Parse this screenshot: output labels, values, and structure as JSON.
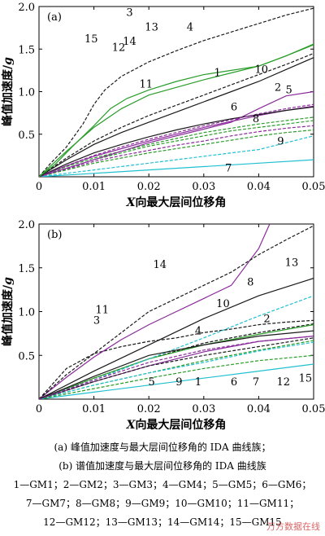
{
  "chart_data": [
    {
      "type": "line",
      "panel_label": "(a)",
      "xlabel_italic": "X",
      "xlabel_rest": "向最大层间位移角",
      "ylabel_main": "峰值加速度/",
      "ylabel_unit": "g",
      "xlim": [
        0,
        0.05
      ],
      "ylim": [
        0,
        2.0
      ],
      "xticks": [
        "0",
        "0.01",
        "0.02",
        "0.03",
        "0.04",
        "0.05"
      ],
      "yticks": [
        "0",
        "0.5",
        "1.0",
        "1.5",
        "2.0"
      ],
      "grid": false,
      "colors": {
        "black": "#1a1a1a",
        "green": "#2a9d2a",
        "purple": "#8a2a9a",
        "cyan": "#20c0d0"
      },
      "series": [
        {
          "name": "1",
          "color": "purple",
          "dash": false,
          "x": [
            0,
            0.005,
            0.01,
            0.015,
            0.02,
            0.025,
            0.03,
            0.035,
            0.04,
            0.045,
            0.05
          ],
          "y": [
            0,
            0.13,
            0.24,
            0.33,
            0.42,
            0.5,
            0.58,
            0.65,
            0.72,
            0.78,
            0.83
          ]
        },
        {
          "name": "2",
          "color": "green",
          "dash": true,
          "x": [
            0,
            0.005,
            0.01,
            0.015,
            0.02,
            0.025,
            0.03,
            0.035,
            0.04,
            0.045,
            0.05
          ],
          "y": [
            0,
            0.12,
            0.22,
            0.3,
            0.38,
            0.45,
            0.52,
            0.57,
            0.62,
            0.66,
            0.7
          ]
        },
        {
          "name": "3",
          "color": "black",
          "dash": true,
          "x": [
            0,
            0.002,
            0.005,
            0.008,
            0.01,
            0.012,
            0.015,
            0.02,
            0.025,
            0.03,
            0.035,
            0.04,
            0.045,
            0.05
          ],
          "y": [
            0,
            0.15,
            0.35,
            0.62,
            0.85,
            1.02,
            1.18,
            1.35,
            1.48,
            1.6,
            1.7,
            1.8,
            1.9,
            1.98
          ]
        },
        {
          "name": "4",
          "color": "green",
          "dash": false,
          "x": [
            0,
            0.005,
            0.01,
            0.015,
            0.02,
            0.025,
            0.03,
            0.035,
            0.04,
            0.045,
            0.05
          ],
          "y": [
            0,
            0.3,
            0.58,
            0.8,
            0.96,
            1.05,
            1.14,
            1.22,
            1.3,
            1.42,
            1.55
          ]
        },
        {
          "name": "5",
          "color": "green",
          "dash": true,
          "x": [
            0,
            0.005,
            0.01,
            0.015,
            0.02,
            0.025,
            0.03,
            0.035,
            0.04,
            0.045,
            0.05
          ],
          "y": [
            0,
            0.1,
            0.2,
            0.28,
            0.36,
            0.42,
            0.48,
            0.54,
            0.58,
            0.62,
            0.66
          ]
        },
        {
          "name": "6",
          "color": "purple",
          "dash": true,
          "x": [
            0,
            0.005,
            0.01,
            0.015,
            0.02,
            0.025,
            0.03,
            0.035,
            0.04,
            0.045,
            0.05
          ],
          "y": [
            0,
            0.09,
            0.18,
            0.25,
            0.31,
            0.37,
            0.42,
            0.48,
            0.53,
            0.57,
            0.6
          ]
        },
        {
          "name": "7",
          "color": "cyan",
          "dash": false,
          "x": [
            0,
            0.01,
            0.02,
            0.03,
            0.04,
            0.05
          ],
          "y": [
            0,
            0.04,
            0.08,
            0.12,
            0.16,
            0.2
          ]
        },
        {
          "name": "8",
          "color": "green",
          "dash": true,
          "x": [
            0,
            0.005,
            0.01,
            0.015,
            0.02,
            0.025,
            0.03,
            0.035,
            0.04,
            0.045,
            0.05
          ],
          "y": [
            0,
            0.08,
            0.16,
            0.22,
            0.28,
            0.33,
            0.38,
            0.43,
            0.48,
            0.52,
            0.55
          ]
        },
        {
          "name": "9",
          "color": "cyan",
          "dash": true,
          "x": [
            0,
            0.01,
            0.02,
            0.03,
            0.035,
            0.04,
            0.045,
            0.05
          ],
          "y": [
            0,
            0.08,
            0.16,
            0.24,
            0.28,
            0.32,
            0.4,
            0.48
          ]
        },
        {
          "name": "10",
          "color": "purple",
          "dash": false,
          "x": [
            0,
            0.005,
            0.01,
            0.015,
            0.02,
            0.025,
            0.03,
            0.035,
            0.04,
            0.045,
            0.05
          ],
          "y": [
            0,
            0.1,
            0.2,
            0.3,
            0.4,
            0.48,
            0.56,
            0.64,
            0.8,
            0.95,
            1.0
          ]
        },
        {
          "name": "11",
          "color": "black",
          "dash": false,
          "x": [
            0,
            0.005,
            0.01,
            0.015,
            0.02,
            0.025,
            0.03,
            0.035,
            0.04,
            0.045,
            0.05
          ],
          "y": [
            0,
            0.15,
            0.28,
            0.38,
            0.47,
            0.55,
            0.62,
            0.68,
            0.73,
            0.78,
            0.82
          ]
        },
        {
          "name": "12",
          "color": "purple",
          "dash": true,
          "x": [
            0,
            0.005,
            0.01,
            0.015,
            0.02,
            0.025,
            0.03,
            0.035,
            0.04,
            0.045,
            0.05
          ],
          "y": [
            0,
            0.13,
            0.25,
            0.35,
            0.44,
            0.52,
            0.6,
            0.67,
            0.74,
            0.8,
            0.85
          ]
        },
        {
          "name": "13",
          "color": "black",
          "dash": false,
          "x": [
            0,
            0.005,
            0.01,
            0.015,
            0.02,
            0.025,
            0.03,
            0.035,
            0.04,
            0.045,
            0.05
          ],
          "y": [
            0,
            0.2,
            0.38,
            0.52,
            0.64,
            0.76,
            0.88,
            1.0,
            1.12,
            1.26,
            1.4
          ]
        },
        {
          "name": "14",
          "color": "black",
          "dash": true,
          "x": [
            0,
            0.005,
            0.01,
            0.015,
            0.02,
            0.025,
            0.03,
            0.035,
            0.04,
            0.045,
            0.05
          ],
          "y": [
            0,
            0.22,
            0.42,
            0.58,
            0.72,
            0.84,
            0.96,
            1.08,
            1.2,
            1.32,
            1.45
          ]
        },
        {
          "name": "15",
          "color": "green",
          "dash": false,
          "x": [
            0,
            0.003,
            0.006,
            0.01,
            0.013,
            0.016,
            0.02,
            0.025,
            0.03,
            0.035,
            0.04,
            0.045,
            0.05
          ],
          "y": [
            0,
            0.15,
            0.35,
            0.6,
            0.8,
            0.92,
            1.02,
            1.12,
            1.2,
            1.25,
            1.3,
            1.42,
            1.56
          ]
        }
      ],
      "labels": [
        {
          "text": "15",
          "x": 0.0095,
          "y": 1.58
        },
        {
          "text": "3",
          "x": 0.0165,
          "y": 1.89
        },
        {
          "text": "13",
          "x": 0.0205,
          "y": 1.72
        },
        {
          "text": "4",
          "x": 0.0275,
          "y": 1.72
        },
        {
          "text": "14",
          "x": 0.0165,
          "y": 1.55
        },
        {
          "text": "12",
          "x": 0.0145,
          "y": 1.48
        },
        {
          "text": "1",
          "x": 0.0325,
          "y": 1.18
        },
        {
          "text": "10",
          "x": 0.0405,
          "y": 1.22
        },
        {
          "text": "11",
          "x": 0.0195,
          "y": 1.05
        },
        {
          "text": "2",
          "x": 0.0435,
          "y": 1.01
        },
        {
          "text": "5",
          "x": 0.0455,
          "y": 0.98
        },
        {
          "text": "6",
          "x": 0.0355,
          "y": 0.78
        },
        {
          "text": "8",
          "x": 0.0395,
          "y": 0.64
        },
        {
          "text": "9",
          "x": 0.044,
          "y": 0.38
        },
        {
          "text": "7",
          "x": 0.0345,
          "y": 0.06
        }
      ]
    },
    {
      "type": "line",
      "panel_label": "(b)",
      "xlabel_italic": "X",
      "xlabel_rest": "向最大层间位移角",
      "ylabel_main": "峰值加速度/",
      "ylabel_unit": "g",
      "xlim": [
        0,
        0.05
      ],
      "ylim": [
        0,
        2.0
      ],
      "xticks": [
        "0",
        "0.01",
        "0.02",
        "0.03",
        "0.04",
        "0.05"
      ],
      "yticks": [
        "0",
        "0.5",
        "1.0",
        "1.5",
        "2.0"
      ],
      "grid": false,
      "colors": {
        "black": "#1a1a1a",
        "green": "#2a9d2a",
        "purple": "#8a2a9a",
        "cyan": "#20c0d0"
      },
      "series": [
        {
          "name": "1",
          "color": "purple",
          "dash": false,
          "x": [
            0,
            0.01,
            0.02,
            0.03,
            0.04,
            0.05
          ],
          "y": [
            0,
            0.2,
            0.38,
            0.54,
            0.66,
            0.72
          ]
        },
        {
          "name": "2",
          "color": "black",
          "dash": true,
          "x": [
            0,
            0.01,
            0.02,
            0.03,
            0.04,
            0.05
          ],
          "y": [
            0,
            0.24,
            0.46,
            0.64,
            0.76,
            0.86
          ]
        },
        {
          "name": "3",
          "color": "black",
          "dash": true,
          "x": [
            0,
            0.005,
            0.01,
            0.015,
            0.02,
            0.025,
            0.03,
            0.035,
            0.04,
            0.045,
            0.05
          ],
          "y": [
            0,
            0.35,
            0.52,
            0.6,
            0.66,
            0.7,
            0.76,
            0.8,
            0.85,
            0.88,
            0.9
          ]
        },
        {
          "name": "4",
          "color": "green",
          "dash": false,
          "x": [
            0,
            0.01,
            0.02,
            0.03,
            0.04,
            0.05
          ],
          "y": [
            0,
            0.24,
            0.46,
            0.62,
            0.74,
            0.85
          ]
        },
        {
          "name": "5",
          "color": "green",
          "dash": true,
          "x": [
            0,
            0.01,
            0.02,
            0.03,
            0.04,
            0.05
          ],
          "y": [
            0,
            0.16,
            0.3,
            0.44,
            0.56,
            0.67
          ]
        },
        {
          "name": "6",
          "color": "cyan",
          "dash": true,
          "x": [
            0,
            0.01,
            0.02,
            0.03,
            0.04,
            0.05
          ],
          "y": [
            0,
            0.16,
            0.3,
            0.42,
            0.55,
            0.65
          ]
        },
        {
          "name": "7",
          "color": "cyan",
          "dash": false,
          "x": [
            0,
            0.01,
            0.02,
            0.03,
            0.04,
            0.05
          ],
          "y": [
            0,
            0.08,
            0.16,
            0.24,
            0.32,
            0.4
          ]
        },
        {
          "name": "8",
          "color": "cyan",
          "dash": true,
          "x": [
            0,
            0.01,
            0.02,
            0.03,
            0.04,
            0.05
          ],
          "y": [
            0,
            0.22,
            0.46,
            0.7,
            0.95,
            1.18
          ]
        },
        {
          "name": "9",
          "color": "green",
          "dash": true,
          "x": [
            0,
            0.01,
            0.02,
            0.03,
            0.04,
            0.05
          ],
          "y": [
            0,
            0.12,
            0.24,
            0.35,
            0.44,
            0.5
          ]
        },
        {
          "name": "10",
          "color": "purple",
          "dash": false,
          "x": [
            0,
            0.005,
            0.01,
            0.015,
            0.02,
            0.025,
            0.03,
            0.035,
            0.04,
            0.042
          ],
          "y": [
            0,
            0.25,
            0.48,
            0.68,
            0.85,
            1.0,
            1.15,
            1.3,
            1.72,
            2.0
          ]
        },
        {
          "name": "11",
          "color": "black",
          "dash": false,
          "x": [
            0,
            0.01,
            0.02,
            0.03,
            0.04,
            0.05
          ],
          "y": [
            0,
            0.26,
            0.5,
            0.62,
            0.72,
            0.78
          ]
        },
        {
          "name": "12",
          "color": "black",
          "dash": true,
          "x": [
            0,
            0.01,
            0.02,
            0.03,
            0.04,
            0.05
          ],
          "y": [
            0,
            0.2,
            0.38,
            0.5,
            0.6,
            0.7
          ]
        },
        {
          "name": "13",
          "color": "black",
          "dash": false,
          "x": [
            0,
            0.01,
            0.02,
            0.03,
            0.04,
            0.05
          ],
          "y": [
            0,
            0.32,
            0.62,
            0.92,
            1.18,
            1.38
          ]
        },
        {
          "name": "14",
          "color": "black",
          "dash": true,
          "x": [
            0,
            0.005,
            0.01,
            0.015,
            0.02,
            0.025,
            0.03,
            0.035,
            0.04,
            0.045,
            0.05
          ],
          "y": [
            0,
            0.28,
            0.52,
            0.76,
            1.0,
            1.15,
            1.3,
            1.45,
            1.65,
            1.82,
            1.98
          ]
        },
        {
          "name": "15",
          "color": "purple",
          "dash": true,
          "x": [
            0,
            0.01,
            0.02,
            0.03,
            0.04,
            0.05
          ],
          "y": [
            0,
            0.22,
            0.42,
            0.56,
            0.66,
            0.72
          ]
        }
      ],
      "labels": [
        {
          "text": "14",
          "x": 0.022,
          "y": 1.5
        },
        {
          "text": "13",
          "x": 0.046,
          "y": 1.52
        },
        {
          "text": "8",
          "x": 0.0385,
          "y": 1.3
        },
        {
          "text": "10",
          "x": 0.0335,
          "y": 1.05
        },
        {
          "text": "11",
          "x": 0.0115,
          "y": 0.98
        },
        {
          "text": "2",
          "x": 0.0415,
          "y": 0.88
        },
        {
          "text": "3",
          "x": 0.0105,
          "y": 0.86
        },
        {
          "text": "4",
          "x": 0.029,
          "y": 0.74
        },
        {
          "text": "5",
          "x": 0.0205,
          "y": 0.16
        },
        {
          "text": "9",
          "x": 0.0255,
          "y": 0.16
        },
        {
          "text": "1",
          "x": 0.029,
          "y": 0.16
        },
        {
          "text": "6",
          "x": 0.0355,
          "y": 0.16
        },
        {
          "text": "7",
          "x": 0.0395,
          "y": 0.16
        },
        {
          "text": "12",
          "x": 0.0445,
          "y": 0.16
        },
        {
          "text": "15",
          "x": 0.0485,
          "y": 0.2
        }
      ]
    }
  ],
  "captions": {
    "a": "(a)  峰值加速度与最大层间位移角的 IDA 曲线族；",
    "b": "(b)  谱值加速度与最大层间位移角的 IDA 曲线族"
  },
  "legend_lines": [
    "1—GM1；2—GM2；3—GM3；4—GM4；5—GM5；6—GM6；",
    "7—GM7；8—GM8；9—GM9；10—GM10；11—GM11；",
    "12—GM12；13—GM13；14—GM14；15—GM15"
  ],
  "watermark": "万方数据在线"
}
